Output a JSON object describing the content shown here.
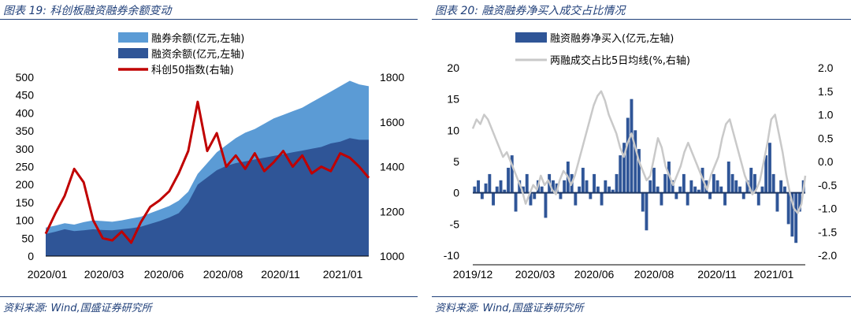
{
  "left": {
    "title": "图表 19:  科创板融资融券余额变动",
    "source": "资料来源:  Wind,国盛证券研究所",
    "colors": {
      "securities_lending": "#5b9bd5",
      "margin": "#2f5597",
      "index": "#c00000"
    },
    "chart_data": {
      "type": "area",
      "x_labels": [
        "2020/01",
        "2020/03",
        "2020/06",
        "2020/08",
        "2020/11",
        "2021/01"
      ],
      "ylim_left": [
        0,
        500
      ],
      "ylim_right": [
        1000,
        1800
      ],
      "yticks_left": [
        "500",
        "450",
        "400",
        "350",
        "300",
        "250",
        "200",
        "150",
        "100",
        "50",
        "0"
      ],
      "yticks_right": [
        "1800",
        "1600",
        "1400",
        "1200",
        "1000"
      ],
      "legend": [
        "融券余额(亿元,左轴)",
        "融资余额(亿元,左轴)",
        "科创50指数(右轴)"
      ],
      "series": [
        {
          "name": "融券余额(亿元,左轴)",
          "axis": "left",
          "values": [
            80,
            85,
            92,
            88,
            95,
            100,
            98,
            96,
            100,
            105,
            110,
            120,
            130,
            140,
            155,
            180,
            230,
            260,
            290,
            310,
            330,
            345,
            355,
            370,
            385,
            395,
            405,
            415,
            430,
            445,
            460,
            475,
            490,
            480,
            475
          ]
        },
        {
          "name": "融资余额(亿元,左轴)",
          "axis": "left",
          "values": [
            62,
            68,
            75,
            70,
            72,
            75,
            73,
            72,
            75,
            78,
            82,
            90,
            98,
            108,
            120,
            150,
            200,
            220,
            240,
            252,
            260,
            265,
            270,
            275,
            280,
            285,
            290,
            295,
            300,
            305,
            315,
            320,
            330,
            325,
            325
          ]
        },
        {
          "name": "科创50指数(右轴)",
          "axis": "right",
          "values": [
            1100,
            1190,
            1270,
            1390,
            1330,
            1160,
            1080,
            1070,
            1110,
            1060,
            1150,
            1220,
            1250,
            1290,
            1370,
            1470,
            1690,
            1470,
            1550,
            1400,
            1450,
            1390,
            1460,
            1380,
            1420,
            1470,
            1400,
            1450,
            1370,
            1400,
            1380,
            1460,
            1440,
            1400,
            1350
          ]
        }
      ]
    }
  },
  "right": {
    "title": "图表 20:  融资融券净买入成交占比情况",
    "source": "资料来源:  Wind,国盛证券研究所",
    "colors": {
      "net_buy": "#2f5597",
      "ratio": "#c9c9c9"
    },
    "chart_data": {
      "type": "bar",
      "x_labels": [
        "2019/12",
        "2020/03",
        "2020/06",
        "2020/08",
        "2020/11",
        "2021/01"
      ],
      "ylim_left": [
        -10,
        20
      ],
      "ylim_right": [
        -2.0,
        2.0
      ],
      "yticks_left": [
        "20",
        "15",
        "10",
        "5",
        "0",
        "-5",
        "-10"
      ],
      "yticks_right": [
        "2.0",
        "1.5",
        "1.0",
        "0.5",
        "0.0",
        "-0.5",
        "-1.0",
        "-1.5",
        "-2.0"
      ],
      "legend": [
        "融资融券净买入(亿元,左轴)",
        "两融成交占比5日均线(%,右轴)"
      ],
      "series": [
        {
          "name": "融资融券净买入(亿元,左轴)",
          "axis": "left",
          "values": [
            1,
            2,
            -1,
            1.5,
            3,
            -2,
            1,
            2,
            0.5,
            4,
            6,
            -3,
            2,
            1,
            3,
            -2,
            -1,
            2,
            1,
            -4,
            3,
            2,
            1.5,
            -1,
            2,
            5,
            3,
            -2,
            1,
            4,
            2,
            -1,
            3,
            1,
            -2,
            2,
            1,
            0.5,
            3,
            6,
            8,
            12,
            15,
            10,
            7,
            -3,
            -6,
            2,
            4,
            1,
            -2,
            3,
            5,
            2,
            -1,
            1,
            3,
            -2,
            2,
            1,
            0.5,
            4,
            2,
            -1,
            3,
            2,
            1,
            -2,
            5,
            3,
            2,
            1,
            -1,
            2,
            4,
            3,
            -2,
            1,
            6,
            8,
            3,
            -3,
            2,
            1,
            -5,
            -7,
            -8,
            -3,
            2
          ]
        },
        {
          "name": "两融成交占比5日均线(%,右轴)",
          "axis": "right",
          "values": [
            0.7,
            0.9,
            0.8,
            1.0,
            0.9,
            0.7,
            0.5,
            0.3,
            0.1,
            0.2,
            0.0,
            -0.2,
            -0.4,
            -0.6,
            -0.9,
            -0.7,
            -0.5,
            -0.6,
            -0.3,
            -0.5,
            -0.4,
            -0.6,
            -0.7,
            -0.4,
            -0.2,
            -0.3,
            -0.5,
            -0.3,
            0.0,
            0.3,
            0.6,
            0.9,
            1.2,
            1.4,
            1.5,
            1.3,
            1.0,
            0.8,
            0.6,
            0.3,
            0.1,
            0.4,
            0.6,
            0.3,
            0.0,
            -0.2,
            -0.4,
            -0.3,
            0.1,
            0.5,
            0.3,
            -0.1,
            -0.3,
            -0.5,
            -0.3,
            -0.1,
            0.2,
            0.4,
            0.2,
            0.0,
            -0.2,
            -0.4,
            -0.6,
            -0.3,
            -0.1,
            0.1,
            0.5,
            0.8,
            0.9,
            0.6,
            0.3,
            0.0,
            -0.3,
            -0.5,
            -0.7,
            -0.6,
            -0.4,
            0.0,
            0.4,
            0.9,
            1.0,
            0.6,
            0.2,
            -0.3,
            -0.7,
            -1.0,
            -1.1,
            -0.9,
            -0.3
          ]
        }
      ]
    }
  }
}
